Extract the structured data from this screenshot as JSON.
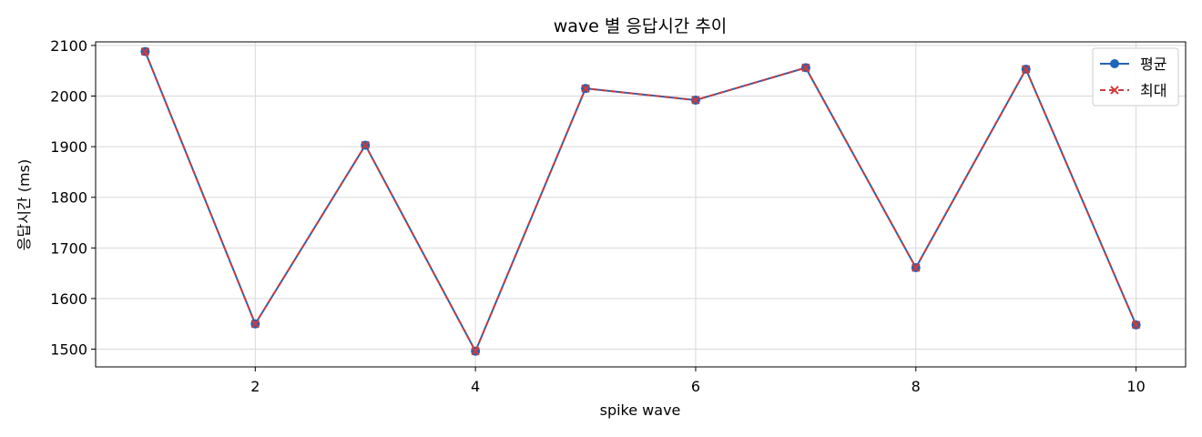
{
  "chart_data": {
    "type": "line",
    "title": "wave 별 응답시간 추이",
    "xlabel": "spike wave",
    "ylabel": "응답시간 (ms)",
    "x": [
      1,
      2,
      3,
      4,
      5,
      6,
      7,
      8,
      9,
      10
    ],
    "xlim": [
      0.55,
      10.45
    ],
    "ylim": [
      1465,
      2107
    ],
    "xticks": [
      2,
      4,
      6,
      8,
      10
    ],
    "yticks": [
      1500,
      1600,
      1700,
      1800,
      1900,
      2000,
      2100
    ],
    "grid": true,
    "legend_position": "top-right",
    "series": [
      {
        "name": "평균",
        "values": [
          2088,
          1550,
          1903,
          1496,
          2015,
          1992,
          2056,
          1661,
          2053,
          1548
        ],
        "color": "#1f65b8",
        "line_style": "solid",
        "marker": "circle"
      },
      {
        "name": "최대",
        "values": [
          2088,
          1550,
          1903,
          1496,
          2015,
          1992,
          2056,
          1661,
          2053,
          1548
        ],
        "color": "#d03a3a",
        "line_style": "dashed",
        "marker": "x"
      }
    ]
  }
}
